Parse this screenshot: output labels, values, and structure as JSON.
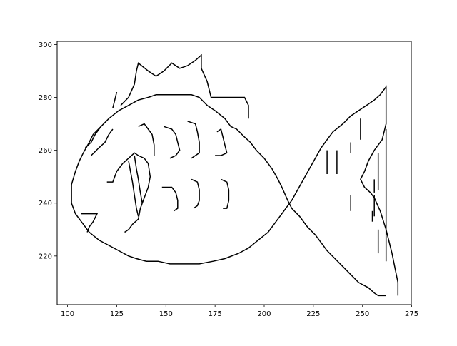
{
  "chart_data": {
    "type": "line",
    "title": "",
    "xlabel": "",
    "ylabel": "",
    "xlim": [
      94.7,
      274.8
    ],
    "ylim": [
      201.6,
      301.2
    ],
    "x_ticks": [
      100,
      125,
      150,
      175,
      200,
      225,
      250,
      275
    ],
    "y_ticks": [
      220,
      240,
      260,
      280,
      300
    ],
    "grid": false,
    "legend": "none",
    "line_color": "#000000",
    "series": [
      {
        "points": [
          [
            102,
            240
          ],
          [
            102,
            247
          ],
          [
            104,
            252
          ],
          [
            106,
            256
          ],
          [
            108,
            259
          ],
          [
            111,
            263
          ],
          [
            113,
            266
          ],
          [
            117,
            269
          ],
          [
            121,
            272
          ],
          [
            126,
            275
          ],
          [
            131,
            277
          ],
          [
            136,
            279
          ],
          [
            141,
            280
          ],
          [
            145,
            281
          ],
          [
            150,
            281
          ],
          [
            156,
            281
          ],
          [
            163,
            281
          ],
          [
            167,
            280
          ],
          [
            171,
            277
          ],
          [
            175,
            275
          ],
          [
            180,
            272
          ],
          [
            183,
            269
          ],
          [
            186,
            268
          ],
          [
            190,
            265
          ],
          [
            193,
            263
          ],
          [
            196,
            260
          ],
          [
            200,
            257
          ],
          [
            204,
            253
          ],
          [
            207,
            249
          ],
          [
            209,
            246
          ],
          [
            212,
            241
          ],
          [
            214,
            238
          ],
          [
            218,
            235
          ],
          [
            222,
            231
          ],
          [
            226,
            228
          ],
          [
            229,
            225
          ],
          [
            232,
            222
          ],
          [
            236,
            219
          ],
          [
            240,
            216
          ],
          [
            244,
            213
          ],
          [
            248,
            210
          ],
          [
            253,
            208
          ],
          [
            256,
            206
          ],
          [
            258,
            205
          ],
          [
            262,
            205
          ]
        ]
      },
      {
        "points": [
          [
            102,
            240
          ],
          [
            104,
            236
          ],
          [
            107,
            233
          ],
          [
            111,
            229
          ],
          [
            116,
            226
          ],
          [
            121,
            224
          ],
          [
            126,
            222
          ],
          [
            131,
            220
          ],
          [
            135,
            219
          ],
          [
            140,
            218
          ],
          [
            146,
            218
          ],
          [
            152,
            217
          ],
          [
            160,
            217
          ],
          [
            167,
            217
          ],
          [
            174,
            218
          ],
          [
            180,
            219
          ],
          [
            187,
            221
          ],
          [
            192,
            223
          ],
          [
            197,
            226
          ],
          [
            202,
            229
          ],
          [
            206,
            233
          ],
          [
            209,
            236
          ],
          [
            212,
            239
          ],
          [
            214,
            241
          ],
          [
            217,
            245
          ],
          [
            220,
            249
          ],
          [
            223,
            253
          ],
          [
            226,
            257
          ],
          [
            229,
            261
          ],
          [
            232,
            264
          ],
          [
            235,
            267
          ],
          [
            240,
            270
          ],
          [
            244,
            273
          ],
          [
            248,
            275
          ],
          [
            252,
            277
          ],
          [
            256,
            279
          ],
          [
            259,
            281
          ],
          [
            262,
            284
          ],
          [
            262,
            270
          ],
          [
            260,
            264
          ],
          [
            256,
            260
          ],
          [
            253,
            256
          ],
          [
            251,
            252
          ],
          [
            249,
            249
          ],
          [
            251,
            246
          ],
          [
            254,
            244
          ],
          [
            256,
            242
          ],
          [
            259,
            237
          ],
          [
            262,
            230
          ],
          [
            265,
            221
          ],
          [
            268,
            210
          ],
          [
            268,
            205
          ]
        ]
      },
      {
        "points": [
          [
            127,
            277
          ],
          [
            131,
            280
          ],
          [
            134,
            285
          ],
          [
            135,
            290
          ],
          [
            136,
            293
          ],
          [
            141,
            290
          ],
          [
            145,
            288
          ],
          [
            149,
            290
          ],
          [
            153,
            293
          ],
          [
            157,
            291
          ],
          [
            161,
            292
          ],
          [
            165,
            294
          ],
          [
            168,
            296
          ],
          [
            168,
            291
          ],
          [
            171,
            286
          ],
          [
            173,
            280
          ],
          [
            178,
            280
          ],
          [
            183,
            280
          ],
          [
            190,
            280
          ],
          [
            192,
            277
          ],
          [
            192,
            272
          ]
        ]
      },
      {
        "points": [
          [
            123,
            276
          ],
          [
            124,
            279
          ],
          [
            125,
            282
          ]
        ]
      },
      {
        "points": [
          [
            120,
            248
          ],
          [
            123,
            248
          ],
          [
            125,
            252
          ],
          [
            128,
            255
          ],
          [
            131,
            257
          ],
          [
            134,
            259
          ],
          [
            136,
            258
          ],
          [
            139,
            257
          ],
          [
            141,
            255
          ],
          [
            142,
            250
          ],
          [
            141,
            246
          ],
          [
            139,
            242
          ],
          [
            137,
            238
          ],
          [
            136,
            234
          ],
          [
            133,
            232
          ],
          [
            131,
            230
          ],
          [
            129,
            229
          ]
        ]
      },
      {
        "points": [
          [
            131,
            256
          ],
          [
            132,
            252
          ],
          [
            133,
            248
          ],
          [
            134,
            243
          ],
          [
            135,
            238
          ],
          [
            136,
            235
          ]
        ]
      },
      {
        "points": [
          [
            134,
            258
          ],
          [
            135,
            253
          ],
          [
            136,
            249
          ],
          [
            137,
            244
          ],
          [
            138,
            240
          ]
        ]
      },
      {
        "points": [
          [
            109,
            261
          ],
          [
            112,
            263
          ],
          [
            114,
            266
          ],
          [
            117,
            269
          ]
        ]
      },
      {
        "points": [
          [
            112,
            258
          ],
          [
            116,
            261
          ],
          [
            119,
            263
          ],
          [
            121,
            266
          ],
          [
            123,
            268
          ]
        ]
      },
      {
        "points": [
          [
            107,
            236
          ],
          [
            111,
            236
          ],
          [
            115,
            236
          ],
          [
            113,
            233
          ],
          [
            111,
            231
          ],
          [
            110,
            229
          ]
        ]
      },
      {
        "points": [
          [
            136,
            269
          ],
          [
            139,
            270
          ],
          [
            141,
            268
          ],
          [
            143,
            266
          ],
          [
            144,
            262
          ],
          [
            144,
            258
          ]
        ]
      },
      {
        "points": [
          [
            149,
            269
          ],
          [
            153,
            268
          ],
          [
            155,
            266
          ],
          [
            156,
            263
          ],
          [
            157,
            260
          ],
          [
            155,
            258
          ],
          [
            152,
            257
          ]
        ]
      },
      {
        "points": [
          [
            161,
            271
          ],
          [
            165,
            270
          ],
          [
            166,
            267
          ],
          [
            167,
            263
          ],
          [
            167,
            259
          ],
          [
            165,
            258
          ],
          [
            163,
            257
          ]
        ]
      },
      {
        "points": [
          [
            176,
            267
          ],
          [
            178,
            268
          ],
          [
            179,
            265
          ],
          [
            180,
            262
          ],
          [
            181,
            259
          ],
          [
            178,
            258
          ],
          [
            175,
            258
          ]
        ]
      },
      {
        "points": [
          [
            148,
            246
          ],
          [
            153,
            246
          ],
          [
            155,
            244
          ],
          [
            156,
            241
          ],
          [
            156,
            238
          ],
          [
            154,
            237
          ]
        ]
      },
      {
        "points": [
          [
            163,
            249
          ],
          [
            166,
            248
          ],
          [
            167,
            245
          ],
          [
            167,
            241
          ],
          [
            166,
            239
          ],
          [
            164,
            238
          ]
        ]
      },
      {
        "points": [
          [
            178,
            249
          ],
          [
            181,
            248
          ],
          [
            182,
            245
          ],
          [
            182,
            241
          ],
          [
            181,
            238
          ],
          [
            179,
            238
          ]
        ]
      },
      {
        "points": [
          [
            232,
            260
          ],
          [
            232,
            251
          ]
        ]
      },
      {
        "points": [
          [
            237,
            260
          ],
          [
            237,
            251
          ]
        ]
      },
      {
        "points": [
          [
            244,
            263
          ],
          [
            244,
            259
          ]
        ]
      },
      {
        "points": [
          [
            249,
            272
          ],
          [
            249,
            264
          ]
        ]
      },
      {
        "points": [
          [
            244,
            243
          ],
          [
            244,
            237
          ]
        ]
      },
      {
        "points": [
          [
            255,
            237
          ],
          [
            255,
            233
          ]
        ]
      },
      {
        "points": [
          [
            256,
            243
          ],
          [
            256,
            235
          ]
        ]
      },
      {
        "points": [
          [
            256,
            249
          ],
          [
            256,
            244
          ]
        ]
      },
      {
        "points": [
          [
            258,
            259
          ],
          [
            258,
            245
          ]
        ]
      },
      {
        "points": [
          [
            258,
            230
          ],
          [
            258,
            221
          ]
        ]
      },
      {
        "points": [
          [
            262,
            268
          ],
          [
            262,
            218
          ]
        ]
      }
    ]
  }
}
